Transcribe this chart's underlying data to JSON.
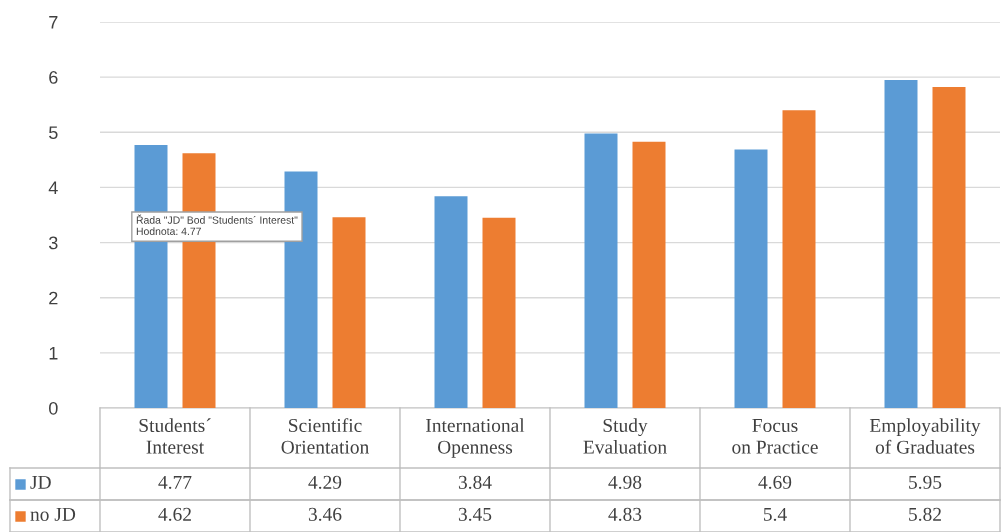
{
  "chart_data": {
    "type": "bar",
    "categories": [
      "Students´ Interest",
      "Scientific Orientation",
      "International Openness",
      "Study Evaluation",
      "Focus on Practice",
      "Employability of Graduates"
    ],
    "series": [
      {
        "name": "JD",
        "color": "#5b9bd5",
        "values": [
          4.77,
          4.29,
          3.84,
          4.98,
          4.69,
          5.95
        ]
      },
      {
        "name": "no JD",
        "color": "#ed7d31",
        "values": [
          4.62,
          3.46,
          3.45,
          4.83,
          5.4,
          5.82
        ]
      }
    ],
    "ylim": [
      0,
      7
    ],
    "yticks": [
      0,
      1,
      2,
      3,
      4,
      5,
      6,
      7
    ],
    "grid": "y",
    "legend": "bottom",
    "data_labels": true,
    "annotations": [
      "Řada \"JD\" Bod \"Students´ Interest\"\nHodnota: 4.77"
    ]
  }
}
